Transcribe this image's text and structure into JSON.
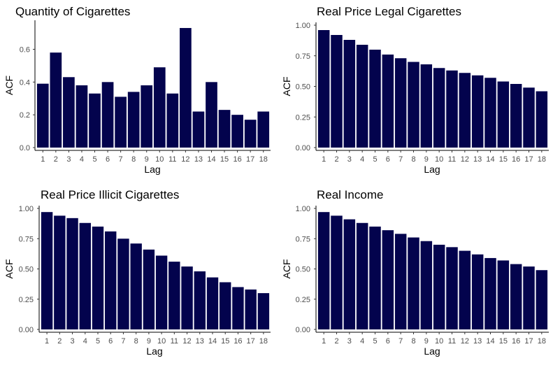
{
  "chart_data": [
    {
      "type": "bar",
      "title": "Quantity of Cigarettes",
      "xlabel": "Lag",
      "ylabel": "ACF",
      "categories": [
        "1",
        "2",
        "3",
        "4",
        "5",
        "6",
        "7",
        "8",
        "9",
        "10",
        "11",
        "12",
        "13",
        "14",
        "15",
        "16",
        "17",
        "18"
      ],
      "values": [
        0.39,
        0.58,
        0.43,
        0.38,
        0.33,
        0.4,
        0.31,
        0.34,
        0.38,
        0.49,
        0.33,
        0.73,
        0.22,
        0.4,
        0.23,
        0.2,
        0.17,
        0.22
      ],
      "yticks": [
        "0.0",
        "0.2",
        "0.4",
        "0.6"
      ],
      "ytick_values": [
        0,
        0.2,
        0.4,
        0.6
      ],
      "ylim": [
        0,
        0.76
      ],
      "bar_color": "#03034d",
      "grid": false,
      "legend": "none"
    },
    {
      "type": "bar",
      "title": "Real Price Legal Cigarettes",
      "xlabel": "Lag",
      "ylabel": "ACF",
      "categories": [
        "1",
        "2",
        "3",
        "4",
        "5",
        "6",
        "7",
        "8",
        "9",
        "10",
        "11",
        "12",
        "13",
        "14",
        "15",
        "16",
        "17",
        "18"
      ],
      "values": [
        0.96,
        0.92,
        0.88,
        0.84,
        0.8,
        0.76,
        0.73,
        0.7,
        0.68,
        0.65,
        0.63,
        0.61,
        0.59,
        0.57,
        0.54,
        0.52,
        0.49,
        0.46
      ],
      "yticks": [
        "0.00",
        "0.25",
        "0.50",
        "0.75",
        "1.00"
      ],
      "ytick_values": [
        0,
        0.25,
        0.5,
        0.75,
        1.0
      ],
      "ylim": [
        0,
        1.0
      ],
      "bar_color": "#03034d",
      "grid": false,
      "legend": "none"
    },
    {
      "type": "bar",
      "title": "Real Price Illicit Cigarettes",
      "xlabel": "Lag",
      "ylabel": "ACF",
      "categories": [
        "1",
        "2",
        "3",
        "4",
        "5",
        "6",
        "7",
        "8",
        "9",
        "10",
        "11",
        "12",
        "13",
        "14",
        "15",
        "16",
        "17",
        "18"
      ],
      "values": [
        0.97,
        0.94,
        0.92,
        0.88,
        0.85,
        0.81,
        0.75,
        0.71,
        0.66,
        0.61,
        0.56,
        0.52,
        0.48,
        0.43,
        0.39,
        0.35,
        0.33,
        0.3
      ],
      "yticks": [
        "0.00",
        "0.25",
        "0.50",
        "0.75",
        "1.00"
      ],
      "ytick_values": [
        0,
        0.25,
        0.5,
        0.75,
        1.0
      ],
      "ylim": [
        0,
        1.0
      ],
      "bar_color": "#03034d",
      "grid": false,
      "legend": "none"
    },
    {
      "type": "bar",
      "title": "Real Income",
      "xlabel": "Lag",
      "ylabel": "ACF",
      "categories": [
        "1",
        "2",
        "3",
        "4",
        "5",
        "6",
        "7",
        "8",
        "9",
        "10",
        "11",
        "12",
        "13",
        "14",
        "15",
        "16",
        "17",
        "18"
      ],
      "values": [
        0.97,
        0.94,
        0.91,
        0.88,
        0.85,
        0.82,
        0.79,
        0.76,
        0.73,
        0.7,
        0.68,
        0.65,
        0.62,
        0.59,
        0.57,
        0.54,
        0.52,
        0.49
      ],
      "yticks": [
        "0.00",
        "0.25",
        "0.50",
        "0.75",
        "1.00"
      ],
      "ytick_values": [
        0,
        0.25,
        0.5,
        0.75,
        1.0
      ],
      "ylim": [
        0,
        1.0
      ],
      "bar_color": "#03034d",
      "grid": false,
      "legend": "none"
    }
  ]
}
